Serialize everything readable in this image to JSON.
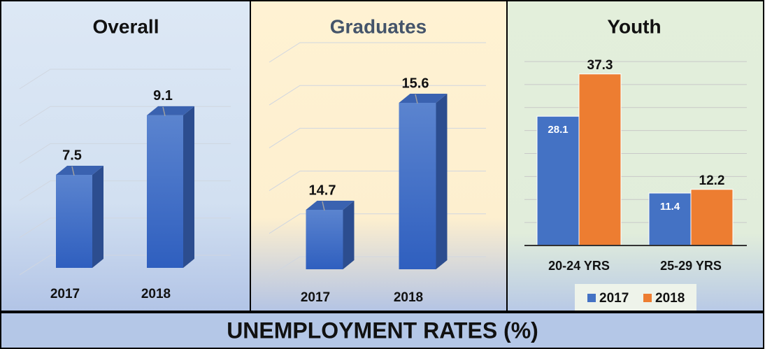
{
  "chart_data": [
    {
      "type": "bar3d",
      "title": "Overall",
      "categories": [
        "2017",
        "2018"
      ],
      "values": [
        7.5,
        9.1
      ],
      "color": "#4472c4",
      "ylim": [
        5,
        10
      ]
    },
    {
      "type": "bar3d",
      "title": "Graduates",
      "categories": [
        "2017",
        "2018"
      ],
      "values": [
        14.7,
        15.6
      ],
      "color": "#4472c4",
      "ylim": [
        14.2,
        16
      ]
    },
    {
      "type": "grouped_bar",
      "title": "Youth",
      "categories": [
        "20-24 YRS",
        "25-29 YRS"
      ],
      "series": [
        {
          "name": "2017",
          "color": "#4472c4",
          "values": [
            28.1,
            11.4
          ]
        },
        {
          "name": "2018",
          "color": "#ed7d31",
          "values": [
            37.3,
            12.2
          ]
        }
      ],
      "ylim": [
        0,
        40
      ],
      "legend": "bottom"
    }
  ],
  "footer": {
    "title": "UNEMPLOYMENT RATES (%)"
  }
}
